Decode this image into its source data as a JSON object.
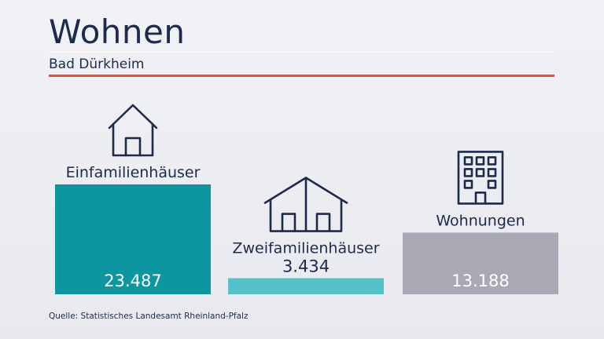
{
  "header": {
    "title": "Wohnen",
    "subtitle": "Bad Dürkheim"
  },
  "footer": {
    "source": "Quelle: Statistisches Landesamt Rheinland-Pfalz"
  },
  "colors": {
    "title": "#1c2a4e",
    "accent_rule": "#e8503a",
    "einfamilien": "#0b96a0",
    "zweifamilien": "#52c2c8",
    "wohnungen": "#a8a9b4"
  },
  "chart_data": {
    "type": "bar",
    "categories": [
      "Einfamilienhäuser",
      "Zweifamilienhäuser",
      "Wohnungen"
    ],
    "values": [
      23487,
      3434,
      13188
    ],
    "value_labels": [
      "23.487",
      "3.434",
      "13.188"
    ],
    "icons": [
      "single-house-icon",
      "double-house-icon",
      "apartment-building-icon"
    ],
    "ylim": [
      0,
      23487
    ],
    "grid": false,
    "legend": "none"
  }
}
